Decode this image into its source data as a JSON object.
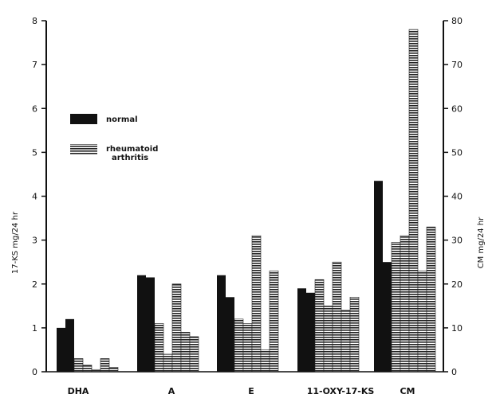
{
  "chart_data": {
    "type": "bar",
    "categories": [
      "DHA",
      "A",
      "E",
      "11-OXY-17-KS",
      "CM"
    ],
    "left_axis": {
      "label": "17-KS mg/24 hr",
      "ylim": [
        0,
        8
      ],
      "ticks": [
        "0",
        "1",
        "2",
        "3",
        "4",
        "5",
        "6",
        "7",
        "8"
      ]
    },
    "right_axis": {
      "label": "CM mg/24 hr",
      "ylim": [
        0,
        80
      ],
      "ticks": [
        "0",
        "10",
        "20",
        "30",
        "40",
        "50",
        "60",
        "70",
        "80"
      ]
    },
    "legend": {
      "position": "upper-left",
      "entries": [
        {
          "key": "normal",
          "label": "normal",
          "pattern": "solid"
        },
        {
          "key": "ra",
          "label": "rheumatoid arthritis",
          "pattern": "hatched"
        }
      ]
    },
    "groups": [
      {
        "category": "DHA",
        "axis": "left",
        "bars": [
          {
            "series": "normal",
            "value": 1.0
          },
          {
            "series": "normal",
            "value": 1.2
          },
          {
            "series": "rheumatoid arthritis",
            "value": 0.3
          },
          {
            "series": "rheumatoid arthritis",
            "value": 0.15
          },
          {
            "series": "rheumatoid arthritis",
            "value": 0.05
          },
          {
            "series": "rheumatoid arthritis",
            "value": 0.3
          },
          {
            "series": "rheumatoid arthritis",
            "value": 0.1
          }
        ]
      },
      {
        "category": "A",
        "axis": "left",
        "bars": [
          {
            "series": "normal",
            "value": 2.2
          },
          {
            "series": "normal",
            "value": 2.15
          },
          {
            "series": "rheumatoid arthritis",
            "value": 1.1
          },
          {
            "series": "rheumatoid arthritis",
            "value": 0.4
          },
          {
            "series": "rheumatoid arthritis",
            "value": 2.0
          },
          {
            "series": "rheumatoid arthritis",
            "value": 0.9
          },
          {
            "series": "rheumatoid arthritis",
            "value": 0.8
          }
        ]
      },
      {
        "category": "E",
        "axis": "left",
        "bars": [
          {
            "series": "normal",
            "value": 2.2
          },
          {
            "series": "normal",
            "value": 1.7
          },
          {
            "series": "rheumatoid arthritis",
            "value": 1.2
          },
          {
            "series": "rheumatoid arthritis",
            "value": 1.1
          },
          {
            "series": "rheumatoid arthritis",
            "value": 3.1
          },
          {
            "series": "rheumatoid arthritis",
            "value": 0.5
          },
          {
            "series": "rheumatoid arthritis",
            "value": 2.3
          }
        ]
      },
      {
        "category": "11-OXY-17-KS",
        "axis": "left",
        "bars": [
          {
            "series": "normal",
            "value": 1.9
          },
          {
            "series": "normal",
            "value": 1.8
          },
          {
            "series": "rheumatoid arthritis",
            "value": 2.1
          },
          {
            "series": "rheumatoid arthritis",
            "value": 1.5
          },
          {
            "series": "rheumatoid arthritis",
            "value": 2.5
          },
          {
            "series": "rheumatoid arthritis",
            "value": 1.4
          },
          {
            "series": "rheumatoid arthritis",
            "value": 1.7
          }
        ]
      },
      {
        "category": "CM",
        "axis": "right",
        "bars": [
          {
            "series": "normal",
            "value": 43.5
          },
          {
            "series": "normal",
            "value": 25
          },
          {
            "series": "rheumatoid arthritis",
            "value": 29.5
          },
          {
            "series": "rheumatoid arthritis",
            "value": 31
          },
          {
            "series": "rheumatoid arthritis",
            "value": 78
          },
          {
            "series": "rheumatoid arthritis",
            "value": 23
          },
          {
            "series": "rheumatoid arthritis",
            "value": 33
          }
        ]
      }
    ]
  }
}
